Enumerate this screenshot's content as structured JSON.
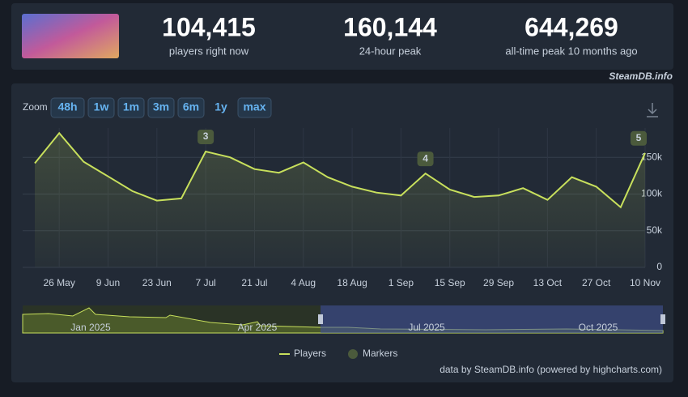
{
  "header": {
    "stats": [
      {
        "value": "104,415",
        "label": "players right now"
      },
      {
        "value": "160,144",
        "label": "24-hour peak"
      },
      {
        "value": "644,269",
        "label": "all-time peak 10 months ago"
      }
    ],
    "source": "SteamDB.info"
  },
  "zoom": {
    "label": "Zoom",
    "buttons": [
      "48h",
      "1w",
      "1m",
      "3m",
      "6m",
      "1y",
      "max"
    ],
    "selected": "6m",
    "disabled": [
      "1y"
    ]
  },
  "chart_data": {
    "type": "line",
    "categories": [
      null,
      "26 May",
      null,
      "9 Jun",
      null,
      "23 Jun",
      null,
      "7 Jul",
      null,
      "21 Jul",
      null,
      "4 Aug",
      null,
      "18 Aug",
      null,
      "1 Sep",
      null,
      "15 Sep",
      null,
      "29 Sep",
      null,
      "13 Oct",
      null,
      "27 Oct",
      null,
      "10 Nov"
    ],
    "series": [
      {
        "name": "Players",
        "color": "#c8e05c",
        "values": [
          142000,
          183000,
          144000,
          124000,
          104000,
          91000,
          94000,
          158000,
          150000,
          134000,
          129000,
          143000,
          123000,
          110000,
          102000,
          98000,
          128000,
          106000,
          96000,
          98000,
          108000,
          92000,
          123000,
          110000,
          82000,
          156000
        ]
      },
      {
        "name": "Markers",
        "color": "#4b5a3c",
        "values": [
          null,
          null,
          null,
          null,
          null,
          null,
          null,
          3,
          null,
          null,
          null,
          null,
          null,
          null,
          null,
          null,
          4,
          null,
          null,
          null,
          null,
          null,
          null,
          null,
          null,
          5
        ]
      }
    ],
    "ylim": [
      0,
      190000
    ],
    "yticks": [
      0,
      {
        "value": 50000,
        "label": "50k"
      },
      {
        "value": 100000,
        "label": "100k"
      },
      {
        "value": 150000,
        "label": "150k"
      }
    ],
    "grid": true,
    "navigator_labels": [
      "Jan 2025",
      "Apr 2025",
      "Jul 2025",
      "Oct 2025"
    ],
    "credits": "data by SteamDB.info (powered by highcharts.com)"
  }
}
